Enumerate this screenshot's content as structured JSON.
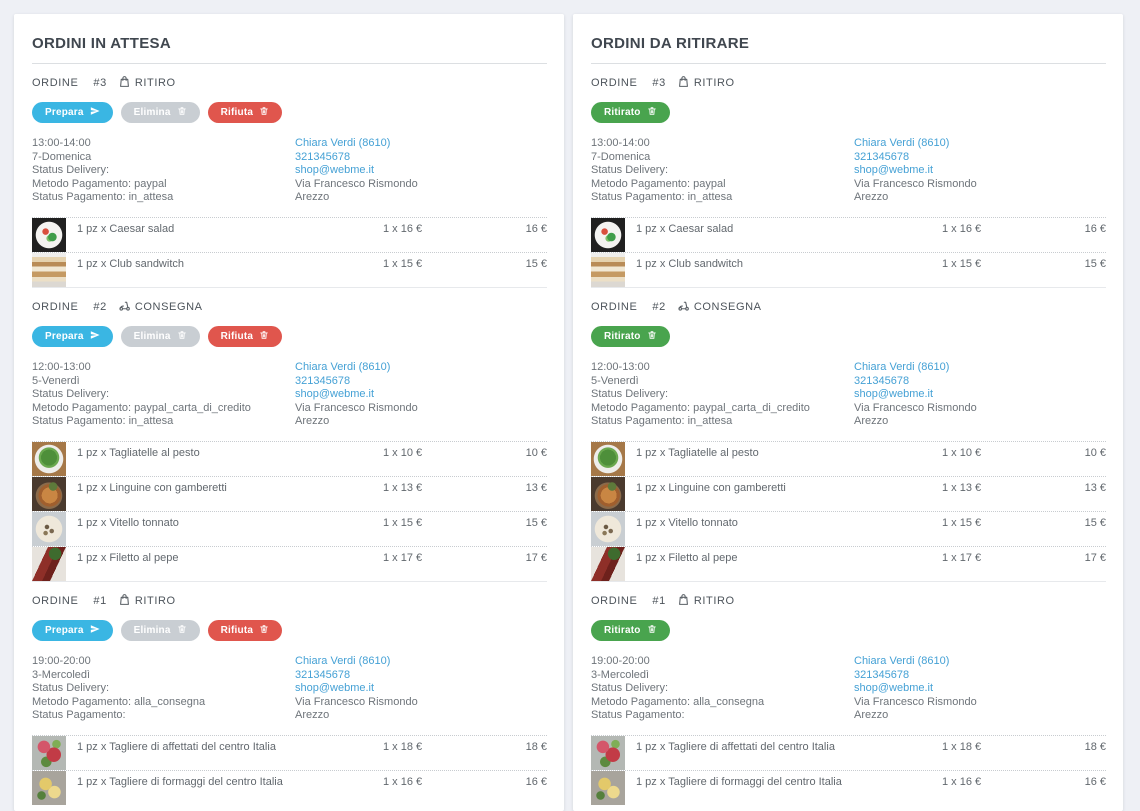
{
  "colors": {
    "background": "#eef0f5",
    "panel": "#ffffff",
    "link": "#45a1d5",
    "prepara": "#3ab6e3",
    "elimina": "#c9ced3",
    "rifiuta": "#e0564d",
    "ritirato": "#49a44e"
  },
  "panels": [
    {
      "title": "ORDINI IN ATTESA",
      "orders": [
        {
          "label": "ORDINE",
          "number": "#3",
          "type": "RITIRO",
          "type_icon": "bag-icon",
          "buttons": [
            {
              "label": "Prepara",
              "icon": "send-icon",
              "style": "prepara",
              "disabled": false
            },
            {
              "label": "Elimina",
              "icon": "trash-icon",
              "style": "elimina",
              "disabled": true
            },
            {
              "label": "Rifiuta",
              "icon": "trash-icon",
              "style": "rifiuta",
              "disabled": false
            }
          ],
          "info": [
            "13:00-14:00",
            "7-Domenica",
            "Status Delivery:",
            "Metodo Pagamento: paypal",
            "Status Pagamento: in_attesa"
          ],
          "contact_links": [
            "Chiara Verdi (8610)",
            "321345678",
            "shop@webme.it"
          ],
          "contact_plain": [
            "Via Francesco Rismondo",
            "Arezzo"
          ],
          "items": [
            {
              "name": "1 pz x Caesar salad",
              "qty": "1 x 16 €",
              "total": "16 €",
              "photo": "caesar-salad"
            },
            {
              "name": "1 pz x Club sandwitch",
              "qty": "1 x 15 €",
              "total": "15 €",
              "photo": "club-sandwich"
            }
          ]
        },
        {
          "label": "ORDINE",
          "number": "#2",
          "type": "CONSEGNA",
          "type_icon": "scooter-icon",
          "buttons": [
            {
              "label": "Prepara",
              "icon": "send-icon",
              "style": "prepara",
              "disabled": false
            },
            {
              "label": "Elimina",
              "icon": "trash-icon",
              "style": "elimina",
              "disabled": true
            },
            {
              "label": "Rifiuta",
              "icon": "trash-icon",
              "style": "rifiuta",
              "disabled": false
            }
          ],
          "info": [
            "12:00-13:00",
            "5-Venerdì",
            "Status Delivery:",
            "Metodo Pagamento: paypal_carta_di_credito",
            "Status Pagamento: in_attesa"
          ],
          "contact_links": [
            "Chiara Verdi (8610)",
            "321345678",
            "shop@webme.it"
          ],
          "contact_plain": [
            "Via Francesco Rismondo",
            "Arezzo"
          ],
          "items": [
            {
              "name": "1 pz x Tagliatelle al pesto",
              "qty": "1 x 10 €",
              "total": "10 €",
              "photo": "tagliatelle-pesto"
            },
            {
              "name": "1 pz x Linguine con gamberetti",
              "qty": "1 x 13 €",
              "total": "13 €",
              "photo": "linguine-gamberetti"
            },
            {
              "name": "1 pz x Vitello tonnato",
              "qty": "1 x 15 €",
              "total": "15 €",
              "photo": "vitello-tonnato"
            },
            {
              "name": "1 pz x Filetto al pepe",
              "qty": "1 x 17 €",
              "total": "17 €",
              "photo": "filetto-pepe"
            }
          ]
        },
        {
          "label": "ORDINE",
          "number": "#1",
          "type": "RITIRO",
          "type_icon": "bag-icon",
          "buttons": [
            {
              "label": "Prepara",
              "icon": "send-icon",
              "style": "prepara",
              "disabled": false
            },
            {
              "label": "Elimina",
              "icon": "trash-icon",
              "style": "elimina",
              "disabled": true
            },
            {
              "label": "Rifiuta",
              "icon": "trash-icon",
              "style": "rifiuta",
              "disabled": false
            }
          ],
          "info": [
            "19:00-20:00",
            "3-Mercoledì",
            "Status Delivery:",
            "Metodo Pagamento: alla_consegna",
            "Status Pagamento:"
          ],
          "contact_links": [
            "Chiara Verdi (8610)",
            "321345678",
            "shop@webme.it"
          ],
          "contact_plain": [
            "Via Francesco Rismondo",
            "Arezzo"
          ],
          "items": [
            {
              "name": "1 pz x Tagliere di affettati del centro Italia",
              "qty": "1 x 18 €",
              "total": "18 €",
              "photo": "tagliere-affettati"
            },
            {
              "name": "1 pz x Tagliere di formaggi del centro Italia",
              "qty": "1 x 16 €",
              "total": "16 €",
              "photo": "tagliere-formaggi"
            }
          ]
        }
      ]
    },
    {
      "title": "ORDINI DA RITIRARE",
      "orders": [
        {
          "label": "ORDINE",
          "number": "#3",
          "type": "RITIRO",
          "type_icon": "bag-icon",
          "buttons": [
            {
              "label": "Ritirato",
              "icon": "trash-icon",
              "style": "ritirato",
              "disabled": false
            }
          ],
          "info": [
            "13:00-14:00",
            "7-Domenica",
            "Status Delivery:",
            "Metodo Pagamento: paypal",
            "Status Pagamento: in_attesa"
          ],
          "contact_links": [
            "Chiara Verdi (8610)",
            "321345678",
            "shop@webme.it"
          ],
          "contact_plain": [
            "Via Francesco Rismondo",
            "Arezzo"
          ],
          "items": [
            {
              "name": "1 pz x Caesar salad",
              "qty": "1 x 16 €",
              "total": "16 €",
              "photo": "caesar-salad"
            },
            {
              "name": "1 pz x Club sandwitch",
              "qty": "1 x 15 €",
              "total": "15 €",
              "photo": "club-sandwich"
            }
          ]
        },
        {
          "label": "ORDINE",
          "number": "#2",
          "type": "CONSEGNA",
          "type_icon": "scooter-icon",
          "buttons": [
            {
              "label": "Ritirato",
              "icon": "trash-icon",
              "style": "ritirato",
              "disabled": false
            }
          ],
          "info": [
            "12:00-13:00",
            "5-Venerdì",
            "Status Delivery:",
            "Metodo Pagamento: paypal_carta_di_credito",
            "Status Pagamento: in_attesa"
          ],
          "contact_links": [
            "Chiara Verdi (8610)",
            "321345678",
            "shop@webme.it"
          ],
          "contact_plain": [
            "Via Francesco Rismondo",
            "Arezzo"
          ],
          "items": [
            {
              "name": "1 pz x Tagliatelle al pesto",
              "qty": "1 x 10 €",
              "total": "10 €",
              "photo": "tagliatelle-pesto"
            },
            {
              "name": "1 pz x Linguine con gamberetti",
              "qty": "1 x 13 €",
              "total": "13 €",
              "photo": "linguine-gamberetti"
            },
            {
              "name": "1 pz x Vitello tonnato",
              "qty": "1 x 15 €",
              "total": "15 €",
              "photo": "vitello-tonnato"
            },
            {
              "name": "1 pz x Filetto al pepe",
              "qty": "1 x 17 €",
              "total": "17 €",
              "photo": "filetto-pepe"
            }
          ]
        },
        {
          "label": "ORDINE",
          "number": "#1",
          "type": "RITIRO",
          "type_icon": "bag-icon",
          "buttons": [
            {
              "label": "Ritirato",
              "icon": "trash-icon",
              "style": "ritirato",
              "disabled": false
            }
          ],
          "info": [
            "19:00-20:00",
            "3-Mercoledì",
            "Status Delivery:",
            "Metodo Pagamento: alla_consegna",
            "Status Pagamento:"
          ],
          "contact_links": [
            "Chiara Verdi (8610)",
            "321345678",
            "shop@webme.it"
          ],
          "contact_plain": [
            "Via Francesco Rismondo",
            "Arezzo"
          ],
          "items": [
            {
              "name": "1 pz x Tagliere di affettati del centro Italia",
              "qty": "1 x 18 €",
              "total": "18 €",
              "photo": "tagliere-affettati"
            },
            {
              "name": "1 pz x Tagliere di formaggi del centro Italia",
              "qty": "1 x 16 €",
              "total": "16 €",
              "photo": "tagliere-formaggi"
            }
          ]
        }
      ]
    }
  ]
}
